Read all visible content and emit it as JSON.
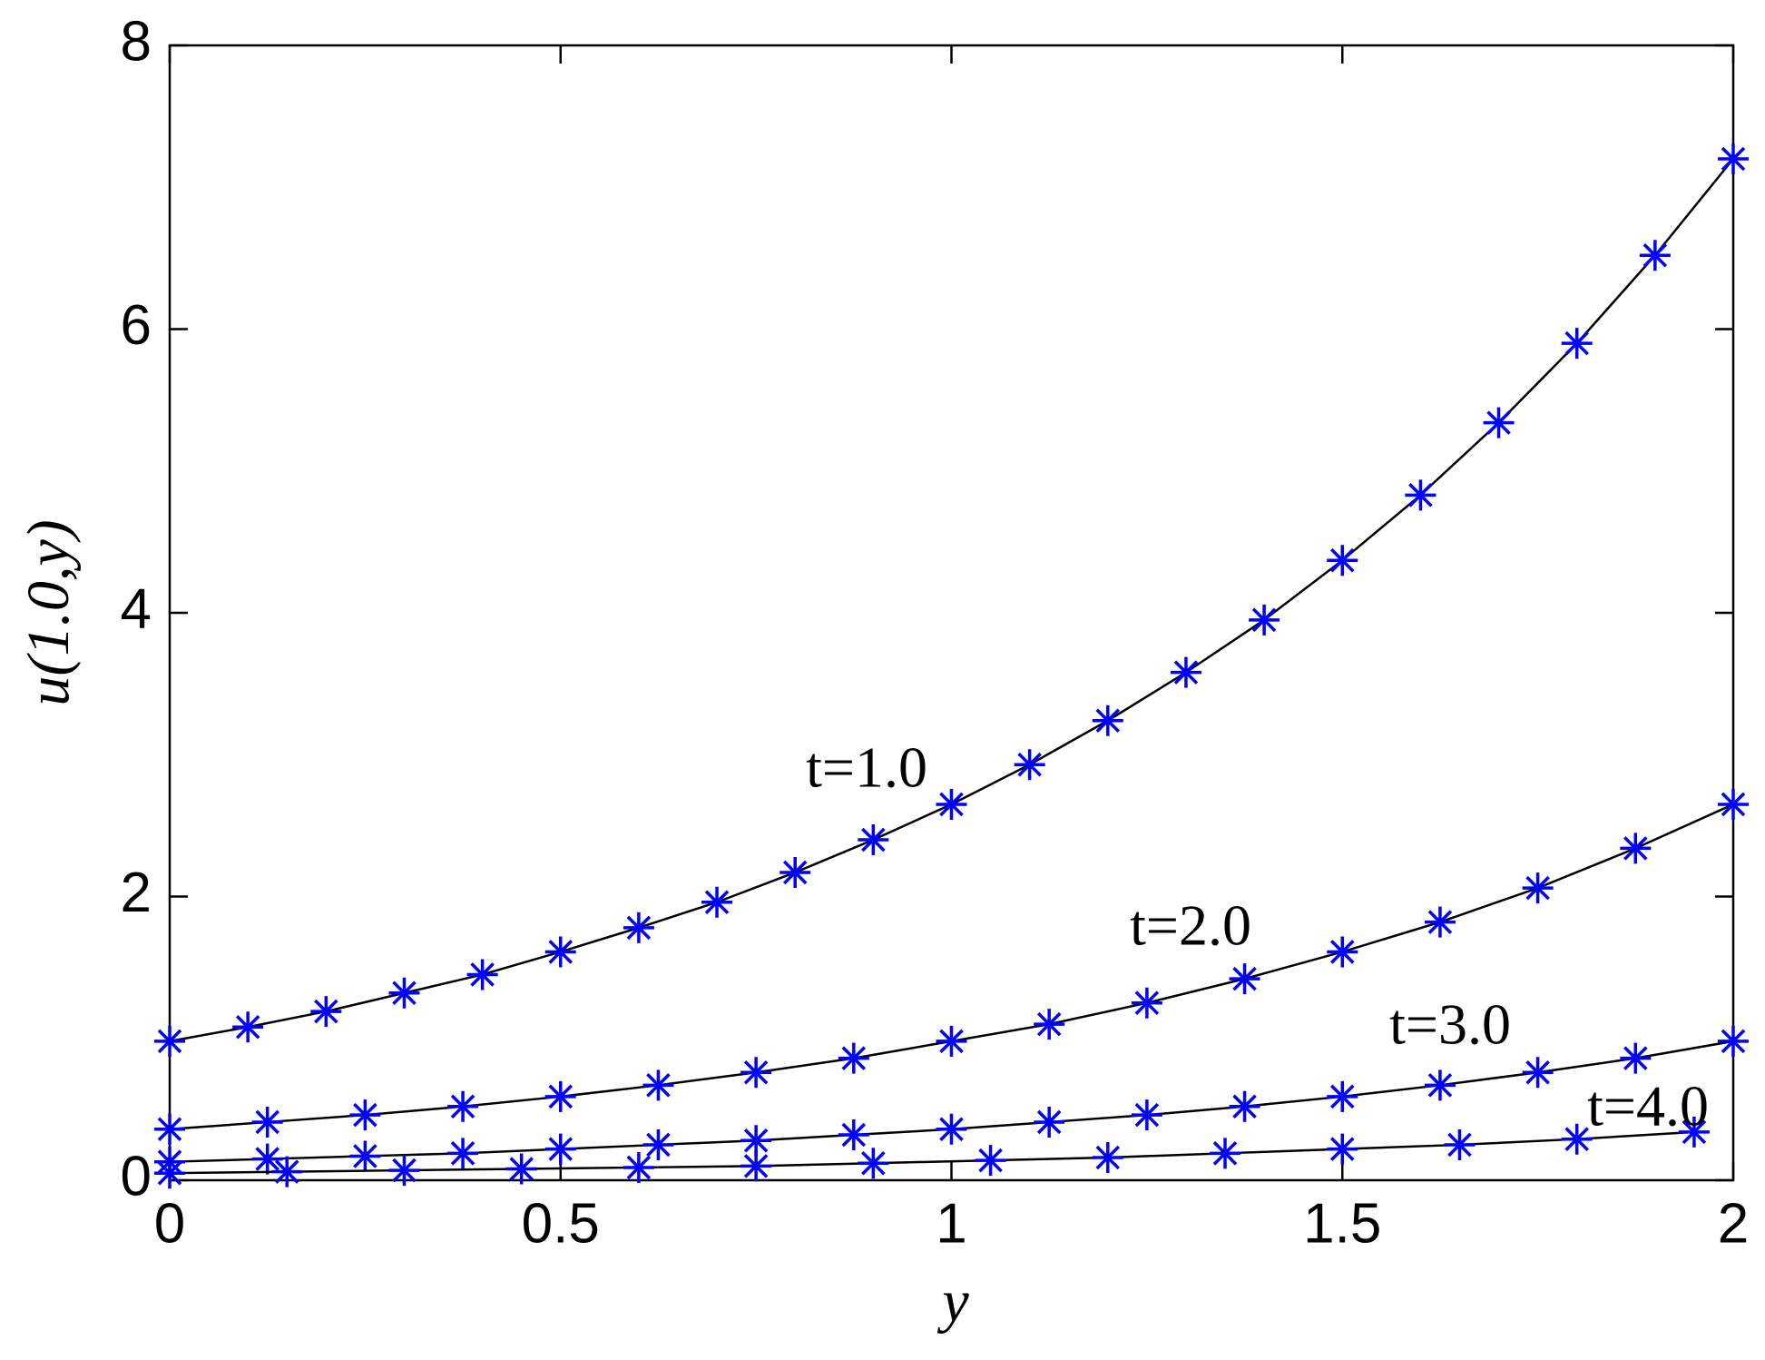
{
  "chart_data": {
    "type": "line",
    "x_label": "y",
    "y_label": "u(1.0,y)",
    "xlim": [
      0,
      2
    ],
    "ylim": [
      0,
      8
    ],
    "xticks": [
      0,
      0.5,
      1,
      1.5,
      2
    ],
    "yticks": [
      0,
      2,
      4,
      6,
      8
    ],
    "line_color": "#000000",
    "marker_color": "#0000ff",
    "series": [
      {
        "name": "t=1.0",
        "x": [
          0,
          0.1,
          0.2,
          0.3,
          0.4,
          0.5,
          0.6,
          0.7,
          0.8,
          0.9,
          1,
          1.1,
          1.2,
          1.3,
          1.4,
          1.5,
          1.6,
          1.7,
          1.8,
          1.9,
          2
        ],
        "values": [
          0.98,
          1.08,
          1.19,
          1.32,
          1.45,
          1.61,
          1.78,
          1.96,
          2.17,
          2.4,
          2.65,
          2.93,
          3.24,
          3.58,
          3.95,
          4.37,
          4.83,
          5.34,
          5.9,
          6.52,
          7.2
        ]
      },
      {
        "name": "t=2.0",
        "x": [
          0,
          0.125,
          0.25,
          0.375,
          0.5,
          0.625,
          0.75,
          0.875,
          1,
          1.125,
          1.25,
          1.375,
          1.5,
          1.625,
          1.75,
          1.875,
          2
        ],
        "values": [
          0.36,
          0.41,
          0.46,
          0.52,
          0.59,
          0.67,
          0.76,
          0.86,
          0.98,
          1.1,
          1.25,
          1.42,
          1.61,
          1.82,
          2.06,
          2.34,
          2.65
        ]
      },
      {
        "name": "t=3.0",
        "x": [
          0,
          0.125,
          0.25,
          0.375,
          0.5,
          0.625,
          0.75,
          0.875,
          1,
          1.125,
          1.25,
          1.375,
          1.5,
          1.625,
          1.75,
          1.875,
          2
        ],
        "values": [
          0.13,
          0.15,
          0.17,
          0.19,
          0.22,
          0.25,
          0.28,
          0.32,
          0.36,
          0.41,
          0.46,
          0.52,
          0.59,
          0.67,
          0.76,
          0.86,
          0.98
        ]
      },
      {
        "name": "t=4.0",
        "x": [
          0,
          0.15,
          0.3,
          0.45,
          0.6,
          0.75,
          0.9,
          1.05,
          1.2,
          1.35,
          1.5,
          1.65,
          1.8,
          1.95
        ],
        "values": [
          0.05,
          0.06,
          0.07,
          0.08,
          0.09,
          0.1,
          0.12,
          0.14,
          0.16,
          0.19,
          0.22,
          0.25,
          0.29,
          0.34
        ]
      }
    ]
  }
}
